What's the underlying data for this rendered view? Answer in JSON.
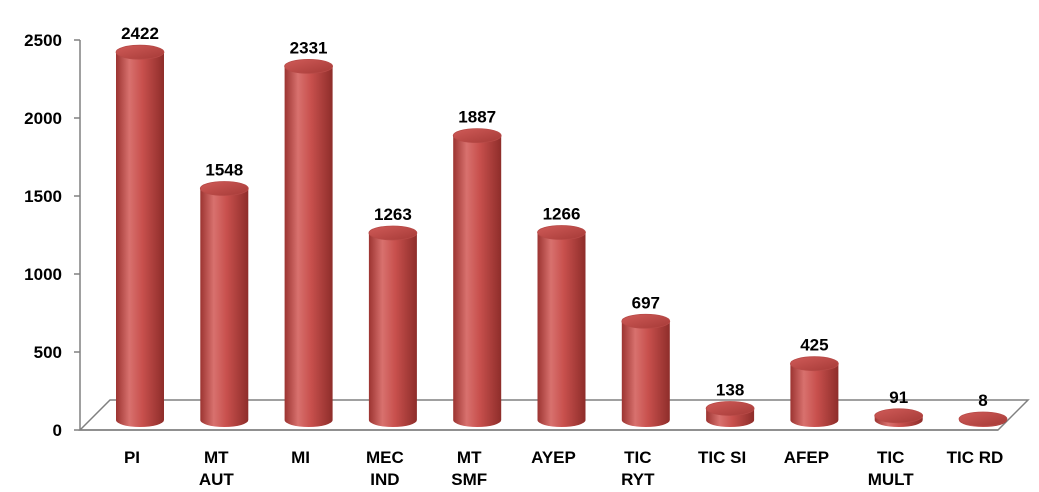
{
  "chart_data": {
    "type": "bar",
    "style": "3d-cylinder",
    "bar_color": "#c0504d",
    "categories": [
      [
        "PI"
      ],
      [
        "MT",
        "AUT"
      ],
      [
        "MI"
      ],
      [
        "MEC",
        "IND"
      ],
      [
        "MT",
        "SMF"
      ],
      [
        "AYEP"
      ],
      [
        "TIC",
        "RYT"
      ],
      [
        "TIC SI"
      ],
      [
        "AFEP"
      ],
      [
        "TIC",
        "MULT"
      ],
      [
        "TIC RD"
      ]
    ],
    "values": [
      2422,
      1548,
      2331,
      1263,
      1887,
      1266,
      697,
      138,
      425,
      91,
      8
    ],
    "value_labels": [
      "2422",
      "1548",
      "2331",
      "1263",
      "1887",
      "1266",
      "697",
      "138",
      "425",
      "91",
      "8"
    ],
    "yticks": [
      "0",
      "500",
      "1000",
      "1500",
      "2000",
      "2500"
    ],
    "ylim": [
      0,
      2500
    ],
    "grid": false,
    "legend": "none"
  }
}
